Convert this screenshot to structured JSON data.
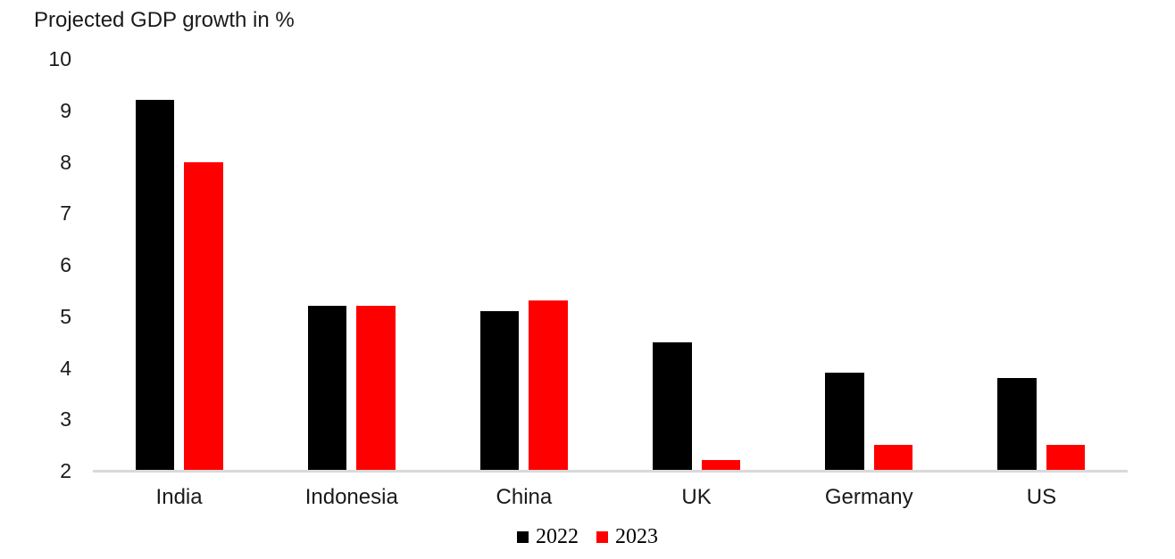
{
  "chart_data": {
    "type": "bar",
    "title": "Projected GDP growth in %",
    "categories": [
      "India",
      "Indonesia",
      "China",
      "UK",
      "Germany",
      "US"
    ],
    "series": [
      {
        "name": "2022",
        "color": "#000000",
        "values": [
          9.2,
          5.2,
          5.1,
          4.5,
          3.9,
          3.8
        ]
      },
      {
        "name": "2023",
        "color": "#ff0000",
        "values": [
          8.0,
          5.2,
          5.3,
          2.2,
          2.5,
          2.5
        ]
      }
    ],
    "ylabel": "",
    "xlabel": "",
    "y_axis": {
      "min": 2,
      "max": 10,
      "step": 1,
      "tick_labels": [
        "10",
        "9",
        "8",
        "7",
        "6",
        "5",
        "4",
        "3",
        "2"
      ]
    },
    "grid": false,
    "legend_position": "bottom",
    "axis_line_color": "#d9d9d9",
    "background_color": "#ffffff",
    "text_color": "#1a1a1a"
  }
}
